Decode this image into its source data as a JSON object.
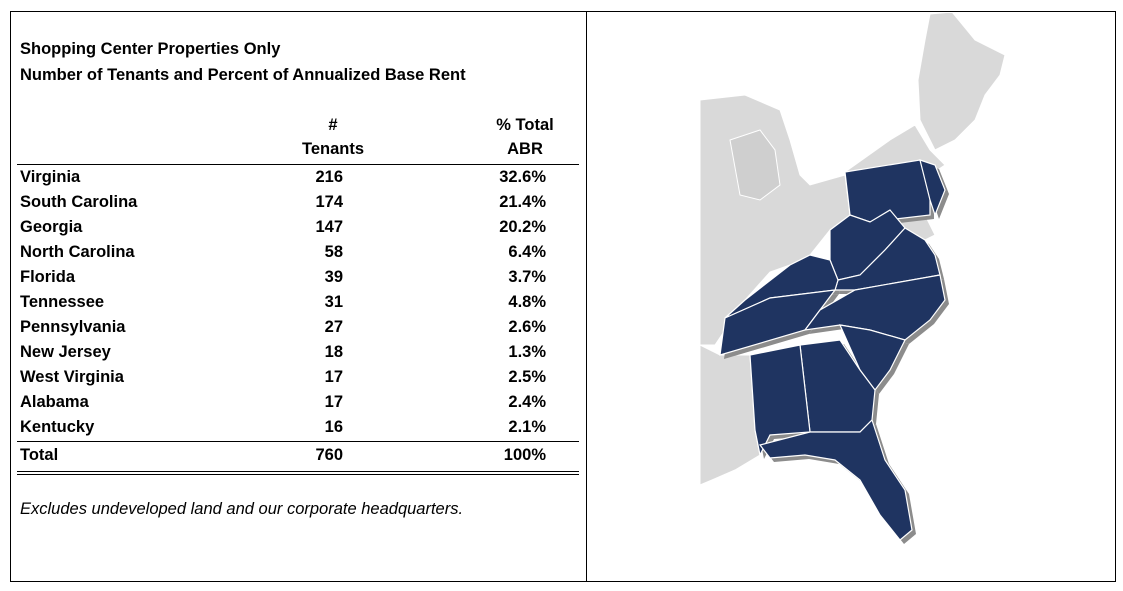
{
  "title_line1": "Shopping Center Properties Only",
  "title_line2": "Number of Tenants and Percent of Annualized Base Rent",
  "headers": {
    "tenants_line1": "#",
    "tenants_line2": "Tenants",
    "abr_line1": "% Total",
    "abr_line2": "ABR"
  },
  "rows": [
    {
      "state": "Virginia",
      "tenants": "216",
      "abr": "32.6%"
    },
    {
      "state": "South Carolina",
      "tenants": "174",
      "abr": "21.4%"
    },
    {
      "state": "Georgia",
      "tenants": "147",
      "abr": "20.2%"
    },
    {
      "state": "North Carolina",
      "tenants": "58",
      "abr": "6.4%"
    },
    {
      "state": "Florida",
      "tenants": "39",
      "abr": "3.7%"
    },
    {
      "state": "Tennessee",
      "tenants": "31",
      "abr": "4.8%"
    },
    {
      "state": "Pennsylvania",
      "tenants": "27",
      "abr": "2.6%"
    },
    {
      "state": "New Jersey",
      "tenants": "18",
      "abr": "1.3%"
    },
    {
      "state": "West Virginia",
      "tenants": "17",
      "abr": "2.5%"
    },
    {
      "state": "Alabama",
      "tenants": "17",
      "abr": "2.4%"
    },
    {
      "state": "Kentucky",
      "tenants": "16",
      "abr": "2.1%"
    }
  ],
  "total": {
    "label": "Total",
    "tenants": "760",
    "abr": "100%"
  },
  "footnote": "Excludes undeveloped land and our corporate headquarters.",
  "map": {
    "highlight_color": "#1f3461",
    "base_color": "#d9d9d9",
    "shadow_color": "#8c8c8c"
  }
}
